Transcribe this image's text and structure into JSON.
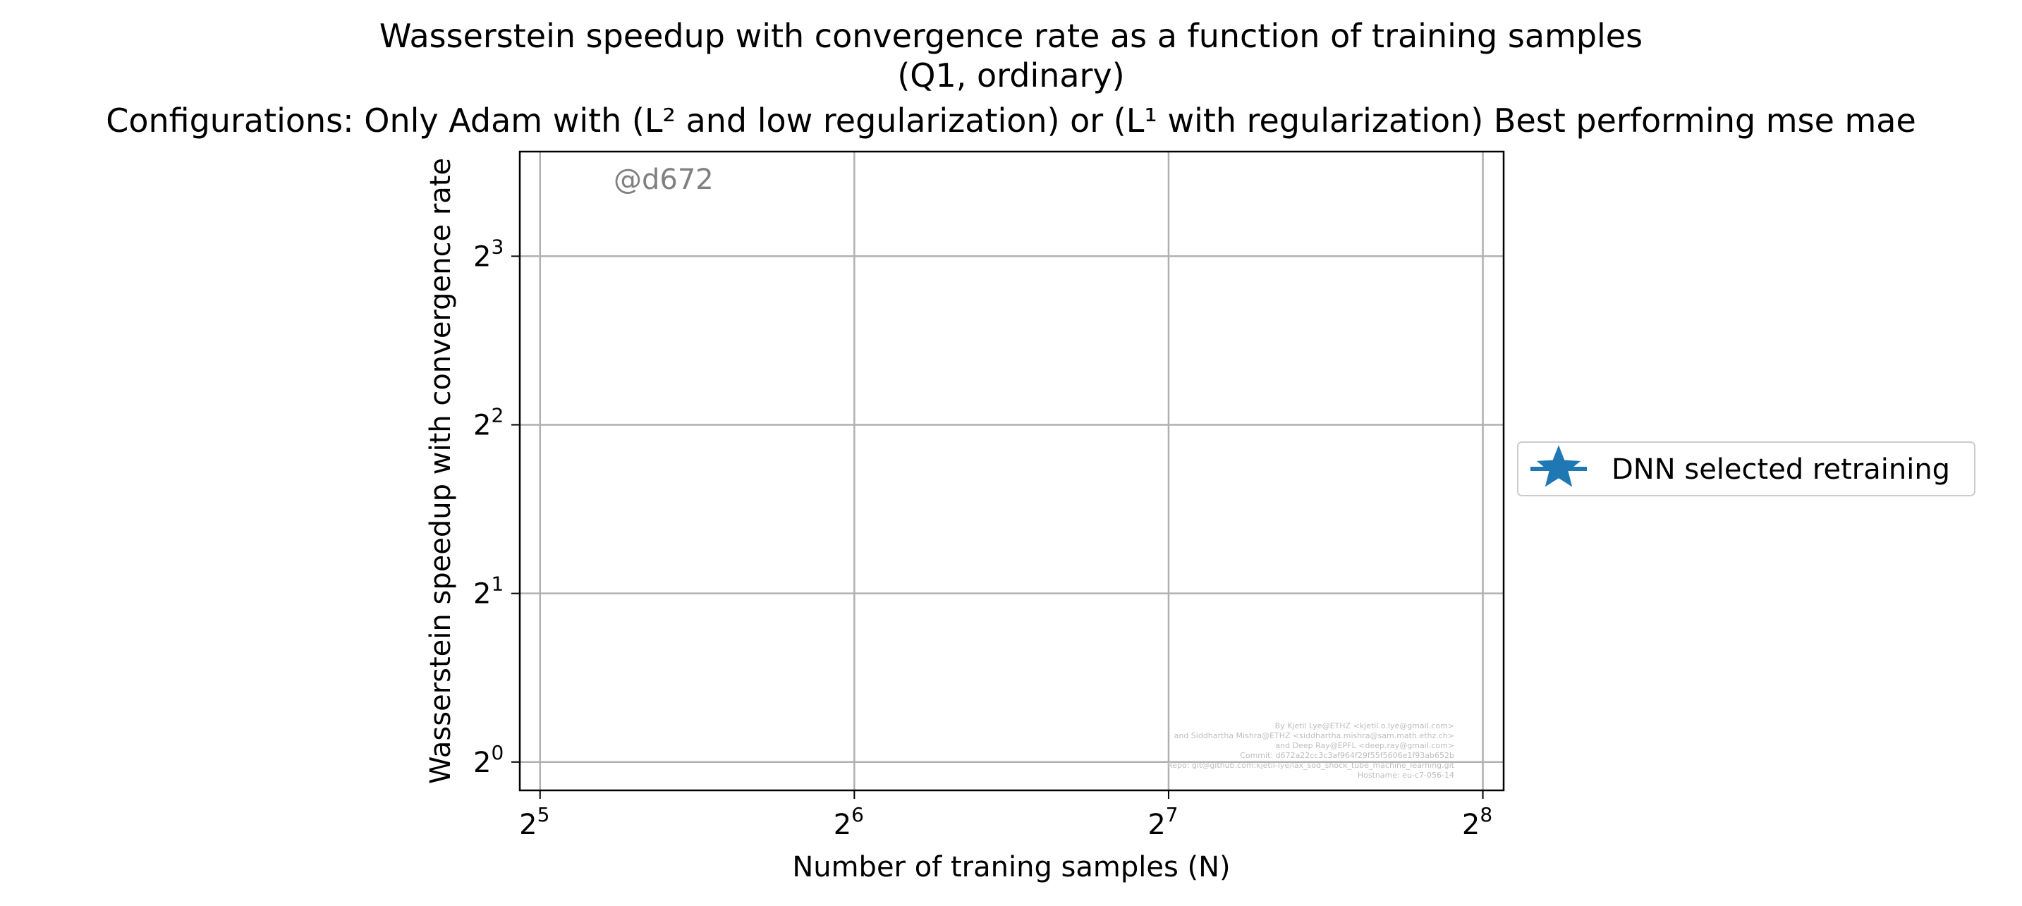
{
  "chart_data": {
    "type": "line",
    "title_lines": [
      "Wasserstein speedup with convergence rate as a function of training samples",
      "(Q1, ordinary)",
      "Configurations: Only Adam with (L² and low regularization) or (L¹ with regularization) Best performing mse mae"
    ],
    "xlabel": "Number of traning samples (N)",
    "ylabel": "Wasserstein speedup with convergence rate",
    "x_scale": "log2",
    "y_scale": "log2",
    "x_ticks": [
      32,
      64,
      128,
      256
    ],
    "x_tick_labels": [
      {
        "base": "2",
        "exp": "5"
      },
      {
        "base": "2",
        "exp": "6"
      },
      {
        "base": "2",
        "exp": "7"
      },
      {
        "base": "2",
        "exp": "8"
      }
    ],
    "y_ticks": [
      1,
      2,
      4,
      8
    ],
    "y_tick_labels": [
      {
        "base": "2",
        "exp": "0"
      },
      {
        "base": "2",
        "exp": "1"
      },
      {
        "base": "2",
        "exp": "2"
      },
      {
        "base": "2",
        "exp": "3"
      }
    ],
    "xlim": [
      30.6,
      268
    ],
    "ylim": [
      0.89,
      12.3
    ],
    "grid": true,
    "legend_placement": "right, outside plot",
    "series": [
      {
        "name": "DNN selected retraining",
        "marker": "star",
        "color": "#1f77b4",
        "x": [],
        "y": []
      }
    ],
    "watermark": "@d672",
    "credits": [
      "By Kjetil Lye@ETHZ <kjetil.o.lye@gmail.com>",
      "and Siddhartha Mishra@ETHZ <siddhartha.mishra@sam.math.ethz.ch>",
      "and Deep Ray@EPFL <deep.ray@gmail.com>",
      "Commit: d672a22cc3c3af964f29f55f5606e1f93ab652b",
      "Repo: git@github.com:kjetil-lye/lax_sod_shock_tube_machine_learning.git",
      "Hostname: eu-c7-056-14"
    ]
  }
}
